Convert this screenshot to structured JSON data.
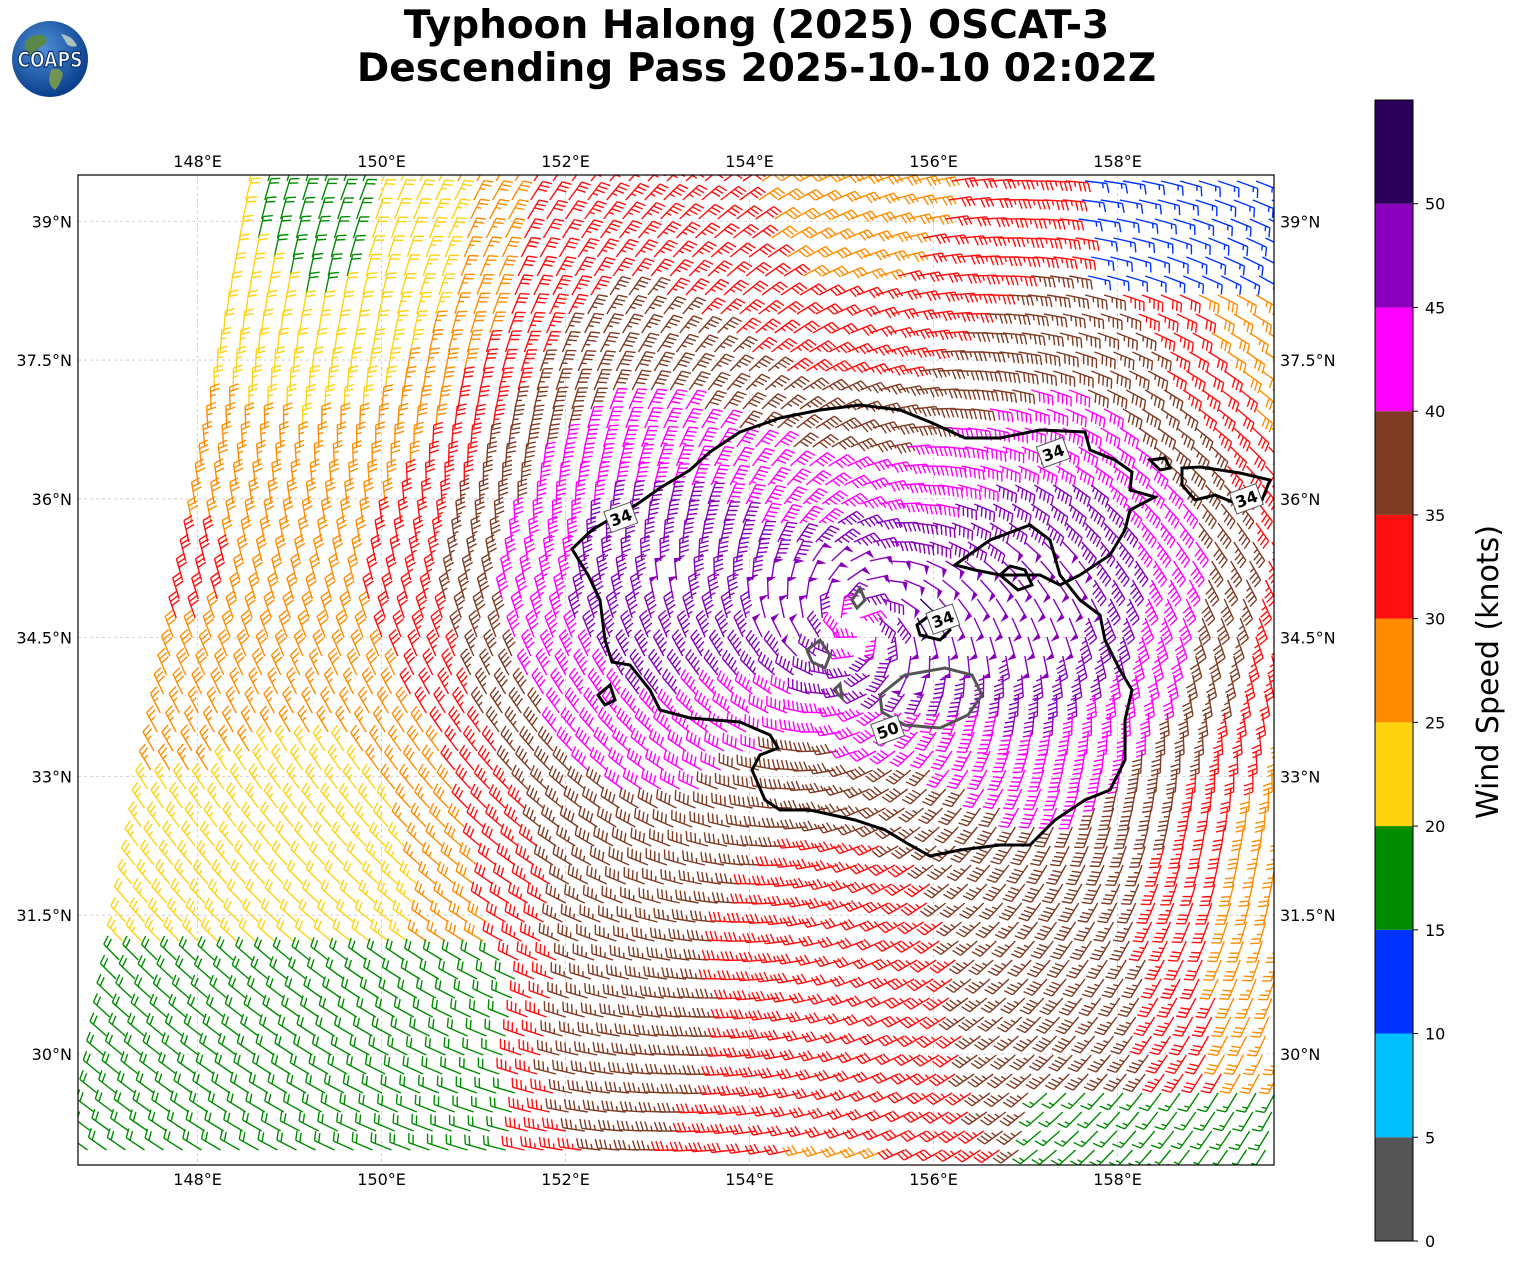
{
  "title": {
    "line1": "Typhoon Halong (2025) OSCAT-3",
    "line2": "Descending Pass 2025-10-10 02:02Z"
  },
  "logo": {
    "text": "COAPS",
    "icon": "globe-logo"
  },
  "map": {
    "lon_range": [
      146.7,
      159.7
    ],
    "lat_range": [
      28.8,
      39.5
    ],
    "lon_ticks": [
      "148°E",
      "150°E",
      "152°E",
      "154°E",
      "156°E",
      "158°E"
    ],
    "lon_tick_values": [
      148,
      150,
      152,
      154,
      156,
      158
    ],
    "lat_ticks": [
      "30°N",
      "31.5°N",
      "33°N",
      "34.5°N",
      "36°N",
      "37.5°N",
      "39°N"
    ],
    "lat_tick_values": [
      30,
      31.5,
      33,
      34.5,
      36,
      37.5,
      39
    ],
    "gridlines": true,
    "storm_center": {
      "lon": 155.2,
      "lat": 34.6
    },
    "contour_labels": [
      {
        "text": "34",
        "lon": 152.6,
        "lat": 35.8
      },
      {
        "text": "34",
        "lon": 157.3,
        "lat": 36.5
      },
      {
        "text": "34",
        "lon": 159.4,
        "lat": 36.0
      },
      {
        "text": "34",
        "lon": 156.1,
        "lat": 34.7
      },
      {
        "text": "50",
        "lon": 155.5,
        "lat": 33.5
      }
    ]
  },
  "colorbar": {
    "label": "Wind Speed (knots)",
    "ticks": [
      "0",
      "5",
      "10",
      "15",
      "20",
      "25",
      "30",
      "35",
      "40",
      "45",
      "50"
    ],
    "bins": [
      {
        "min": 0,
        "max": 5,
        "color": "#555555"
      },
      {
        "min": 5,
        "max": 10,
        "color": "#00bfff"
      },
      {
        "min": 10,
        "max": 15,
        "color": "#0033ff"
      },
      {
        "min": 15,
        "max": 20,
        "color": "#008c00"
      },
      {
        "min": 20,
        "max": 25,
        "color": "#ffd20f"
      },
      {
        "min": 25,
        "max": 30,
        "color": "#ff8c00"
      },
      {
        "min": 30,
        "max": 35,
        "color": "#ff0f0f"
      },
      {
        "min": 35,
        "max": 40,
        "color": "#7f3b23"
      },
      {
        "min": 40,
        "max": 45,
        "color": "#ff00ff"
      },
      {
        "min": 45,
        "max": 50,
        "color": "#8800bb"
      },
      {
        "min": 50,
        "max": 55,
        "color": "#2a0058"
      }
    ]
  }
}
